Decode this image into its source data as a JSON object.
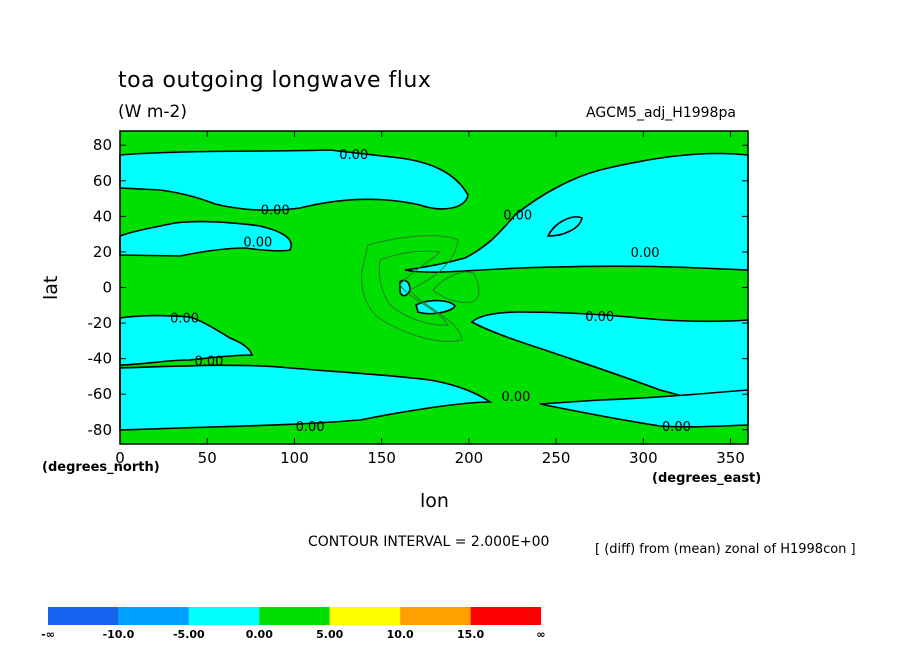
{
  "header": {
    "title": "toa outgoing longwave flux",
    "units": "(W m-2)",
    "model": "AGCM5_adj_H1998pa"
  },
  "footer": {
    "contour_interval": "CONTOUR INTERVAL = 2.000E+00",
    "note": "[ (diff) from (mean) zonal of H1998con ]"
  },
  "colors": {
    "neg_fill": "#00ffff",
    "pos_fill": "#00e000",
    "line": "#000000"
  },
  "chart_data": {
    "type": "heatmap",
    "title": "toa outgoing longwave flux",
    "subtitle": "(W m-2)",
    "xlabel": "lon",
    "ylabel": "lat",
    "x_unit_label": "(degrees_east)",
    "y_unit_label": "(degrees_north)",
    "xlim": [
      0,
      360
    ],
    "ylim": [
      -88,
      88
    ],
    "x_ticks": [
      0,
      50,
      100,
      150,
      200,
      250,
      300,
      350
    ],
    "y_ticks": [
      -80,
      -60,
      -40,
      -20,
      0,
      20,
      40,
      60,
      80
    ],
    "contour_labels": [
      {
        "text": "0.00",
        "lon": 134,
        "lat": 75
      },
      {
        "text": "0.00",
        "lon": 89,
        "lat": 44
      },
      {
        "text": "0.00",
        "lon": 79,
        "lat": 26
      },
      {
        "text": "0.00",
        "lon": 228,
        "lat": 41
      },
      {
        "text": "0.00",
        "lon": 301,
        "lat": 20
      },
      {
        "text": "0.00",
        "lon": 37,
        "lat": -17
      },
      {
        "text": "0.00",
        "lon": 51,
        "lat": -41
      },
      {
        "text": "0.00",
        "lon": 275,
        "lat": -16
      },
      {
        "text": "0.00",
        "lon": 227,
        "lat": -61
      },
      {
        "text": "0.00",
        "lon": 319,
        "lat": -78
      },
      {
        "text": "0.00",
        "lon": 109,
        "lat": -78
      }
    ],
    "colorbar": {
      "labels": [
        "-∞",
        "-10.0",
        "-5.00",
        "0.00",
        "5.00",
        "10.0",
        "15.0",
        "∞"
      ],
      "colors": [
        "#1464f0",
        "#00a0ff",
        "#00ffff",
        "#00e000",
        "#ffff00",
        "#ffa000",
        "#ff0000"
      ]
    }
  }
}
